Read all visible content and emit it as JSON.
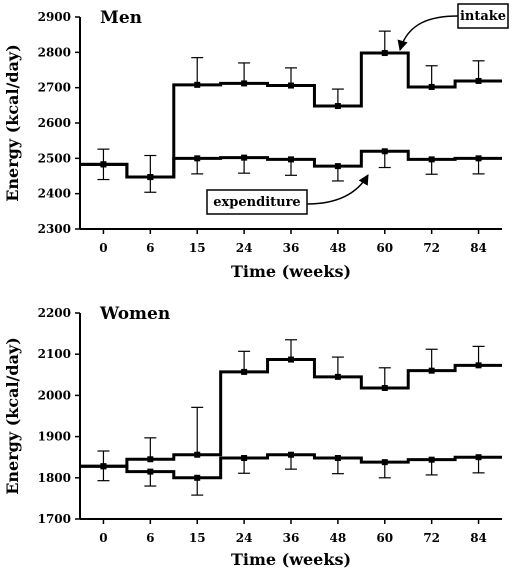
{
  "chart_data": [
    {
      "type": "line",
      "title": "Men",
      "xlabel": "Time (weeks)",
      "ylabel": "Energy (kcal/day)",
      "categories": [
        "0",
        "6",
        "15",
        "24",
        "36",
        "48",
        "60",
        "72",
        "84"
      ],
      "ylim": [
        2300,
        2900
      ],
      "yticks": [
        2300,
        2400,
        2500,
        2600,
        2700,
        2800,
        2900
      ],
      "series": [
        {
          "name": "intake",
          "values": [
            2483,
            2447,
            2708,
            2712,
            2706,
            2648,
            2798,
            2702,
            2719
          ],
          "err_up": [
            43,
            61,
            77,
            58,
            50,
            48,
            62,
            60,
            57
          ],
          "err_down": [
            43,
            43,
            0,
            0,
            0,
            0,
            0,
            0,
            0
          ]
        },
        {
          "name": "expenditure",
          "values": [
            2483,
            2447,
            2500,
            2502,
            2497,
            2478,
            2520,
            2497,
            2500
          ],
          "err_up": [
            0,
            0,
            0,
            0,
            0,
            0,
            0,
            0,
            0
          ],
          "err_down": [
            0,
            0,
            44,
            44,
            45,
            42,
            46,
            42,
            44
          ]
        }
      ],
      "annotations": [
        {
          "text": "intake",
          "target": "intake"
        },
        {
          "text": "expenditure",
          "target": "expenditure"
        }
      ]
    },
    {
      "type": "line",
      "title": "Women",
      "xlabel": "Time (weeks)",
      "ylabel": "Energy (kcal/day)",
      "categories": [
        "0",
        "6",
        "15",
        "24",
        "36",
        "48",
        "60",
        "72",
        "84"
      ],
      "ylim": [
        1700,
        2200
      ],
      "yticks": [
        1700,
        1800,
        1900,
        2000,
        2100,
        2200
      ],
      "series": [
        {
          "name": "intake",
          "values": [
            1828,
            1845,
            1856,
            2057,
            2087,
            2045,
            2018,
            2060,
            2073
          ],
          "err_up": [
            37,
            52,
            115,
            50,
            48,
            48,
            49,
            52,
            46
          ],
          "err_down": [
            0,
            0,
            0,
            0,
            0,
            0,
            0,
            0,
            0
          ]
        },
        {
          "name": "expenditure",
          "values": [
            1828,
            1815,
            1800,
            1848,
            1856,
            1848,
            1838,
            1844,
            1850
          ],
          "err_up": [
            0,
            0,
            0,
            0,
            0,
            0,
            0,
            0,
            0
          ],
          "err_down": [
            35,
            35,
            42,
            37,
            35,
            38,
            38,
            37,
            38
          ]
        }
      ]
    }
  ]
}
